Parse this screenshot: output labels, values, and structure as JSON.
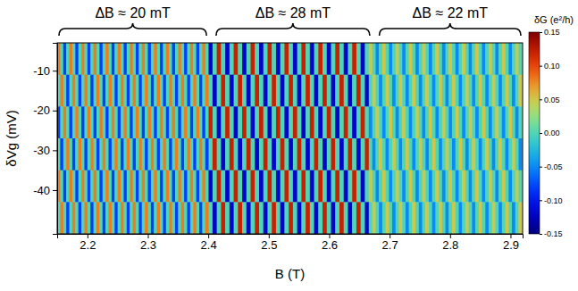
{
  "chart_data": {
    "type": "heatmap",
    "xlabel": "B (T)",
    "ylabel": "δVg (mV)",
    "xlim": [
      2.15,
      2.92
    ],
    "ylim": [
      -51,
      -3
    ],
    "xticks": [
      2.2,
      2.3,
      2.4,
      2.5,
      2.6,
      2.7,
      2.8,
      2.9
    ],
    "yticks": [
      -10,
      -20,
      -30,
      -40
    ],
    "x": [
      2.1525,
      2.1575,
      2.1625,
      2.1675,
      2.1725,
      2.1775,
      2.1825,
      2.1875,
      2.1925,
      2.1975,
      2.2025,
      2.2075,
      2.2125,
      2.2175,
      2.2225,
      2.2275,
      2.2325,
      2.2375,
      2.2425,
      2.2475,
      2.2525,
      2.2575,
      2.2625,
      2.2675,
      2.2725,
      2.2775,
      2.2825,
      2.2875,
      2.2925,
      2.2975,
      2.3025,
      2.3075,
      2.3125,
      2.3175,
      2.3225,
      2.3275,
      2.3325,
      2.3375,
      2.3425,
      2.3475,
      2.3525,
      2.3575,
      2.3625,
      2.3675,
      2.3725,
      2.3775,
      2.3825,
      2.3875,
      2.3925,
      2.3975,
      2.4035,
      2.4105,
      2.4175,
      2.4245,
      2.4315,
      2.4385,
      2.4455,
      2.4525,
      2.4595,
      2.4665,
      2.4735,
      2.4805,
      2.4875,
      2.4945,
      2.5015,
      2.5085,
      2.5155,
      2.5225,
      2.5295,
      2.5365,
      2.5435,
      2.5505,
      2.5575,
      2.5645,
      2.5715,
      2.5785,
      2.5855,
      2.5925,
      2.5995,
      2.6065,
      2.6135,
      2.6205,
      2.6275,
      2.6345,
      2.6415,
      2.6485,
      2.6555,
      2.6625,
      2.6685,
      2.674,
      2.6795,
      2.685,
      2.6905,
      2.696,
      2.7015,
      2.707,
      2.7125,
      2.718,
      2.7235,
      2.729,
      2.7345,
      2.74,
      2.7455,
      2.751,
      2.7565,
      2.762,
      2.7675,
      2.773,
      2.7785,
      2.784,
      2.7895,
      2.795,
      2.8005,
      2.806,
      2.8115,
      2.817,
      2.8225,
      2.828,
      2.8335,
      2.839,
      2.8445,
      2.85,
      2.8555,
      2.861,
      2.8665,
      2.872,
      2.8775,
      2.883,
      2.8885,
      2.894,
      2.8995,
      2.905,
      2.9105,
      2.916
    ],
    "y": [
      -7,
      -15,
      -23,
      -31,
      -39,
      -47
    ],
    "values": [
      [
        0.08,
        0,
        -0.08,
        0,
        0.08,
        0,
        -0.08,
        0,
        0.08,
        0,
        -0.08,
        0,
        0.08,
        0,
        -0.08,
        0,
        0.08,
        0,
        -0.08,
        0,
        0.08,
        0,
        -0.08,
        0,
        0.08,
        0,
        -0.08,
        0,
        0.08,
        0,
        -0.08,
        0,
        0.08,
        0,
        -0.08,
        0,
        0.08,
        0,
        -0.08,
        0,
        0.08,
        0,
        -0.08,
        0,
        0.08,
        0,
        -0.08,
        0,
        0.08,
        0,
        -0.12,
        0,
        0.12,
        0,
        -0.12,
        0,
        0.12,
        0,
        -0.12,
        0,
        0.12,
        0,
        -0.12,
        0,
        0.12,
        0,
        -0.12,
        0,
        0.12,
        0,
        -0.12,
        0,
        0.12,
        0,
        -0.12,
        0,
        0.12,
        0,
        -0.12,
        0,
        0.12,
        0,
        -0.12,
        0,
        0.12,
        0,
        -0.12,
        0,
        0.05,
        0,
        -0.05,
        0,
        0.05,
        0,
        -0.05,
        0,
        0.05,
        0,
        -0.05,
        0,
        0.05,
        0,
        -0.05,
        0,
        0.05,
        0,
        -0.05,
        0,
        0.05,
        0,
        -0.05,
        0,
        0.05,
        0,
        -0.05,
        0,
        0.05,
        0,
        -0.05,
        0,
        0.05,
        0,
        -0.05,
        0,
        0.05,
        0,
        -0.05,
        0,
        0.05,
        0,
        -0.05,
        0,
        0.05,
        0
      ],
      [
        0,
        0.08,
        0,
        -0.08,
        0,
        0.08,
        0,
        -0.08,
        0,
        0.08,
        0,
        -0.08,
        0,
        0.08,
        0,
        -0.08,
        0,
        0.08,
        0,
        -0.08,
        0,
        0.08,
        0,
        -0.08,
        0,
        0.08,
        0,
        -0.08,
        0,
        0.08,
        0,
        -0.08,
        0,
        0.08,
        0,
        -0.08,
        0,
        0.08,
        0,
        -0.08,
        0,
        0.08,
        0,
        -0.08,
        0,
        0.08,
        0,
        -0.08,
        0,
        0.08,
        0,
        -0.12,
        0,
        0.12,
        0,
        -0.12,
        0,
        0.12,
        0,
        -0.12,
        0,
        0.12,
        0,
        -0.12,
        0,
        0.12,
        0,
        -0.12,
        0,
        0.12,
        0,
        -0.12,
        0,
        0.12,
        0,
        -0.12,
        0,
        0.12,
        0,
        -0.12,
        0,
        0.12,
        0,
        -0.12,
        0,
        0.12,
        0,
        -0.12,
        0,
        0.05,
        0,
        -0.05,
        0,
        0.05,
        0,
        -0.05,
        0,
        0.05,
        0,
        -0.05,
        0,
        0.05,
        0,
        -0.05,
        0,
        0.05,
        0,
        -0.05,
        0,
        0.05,
        0,
        -0.05,
        0,
        0.05,
        0,
        -0.05,
        0,
        0.05,
        0,
        -0.05,
        0,
        0.05,
        0,
        -0.05,
        0,
        0.05,
        0,
        -0.05,
        0,
        0.05,
        0,
        -0.05,
        0,
        0.05
      ],
      [
        -0.08,
        0,
        0.08,
        0,
        -0.08,
        0,
        0.08,
        0,
        -0.08,
        0,
        0.08,
        0,
        -0.08,
        0,
        0.08,
        0,
        -0.08,
        0,
        0.08,
        0,
        -0.08,
        0,
        0.08,
        0,
        -0.08,
        0,
        0.08,
        0,
        -0.08,
        0,
        0.08,
        0,
        -0.08,
        0,
        0.08,
        0,
        -0.08,
        0,
        0.08,
        0,
        -0.08,
        0,
        0.08,
        0,
        -0.08,
        0,
        0.08,
        0,
        -0.08,
        0,
        0.12,
        0,
        -0.12,
        0,
        0.12,
        0,
        -0.12,
        0,
        0.12,
        0,
        -0.12,
        0,
        0.12,
        0,
        -0.12,
        0,
        0.12,
        0,
        -0.12,
        0,
        0.12,
        0,
        -0.12,
        0,
        0.12,
        0,
        -0.12,
        0,
        0.12,
        0,
        -0.12,
        0,
        0.12,
        0,
        -0.12,
        0,
        0.12,
        0,
        -0.05,
        0,
        0.05,
        0,
        -0.05,
        0,
        0.05,
        0,
        -0.05,
        0,
        0.05,
        0,
        -0.05,
        0,
        0.05,
        0,
        -0.05,
        0,
        0.05,
        0,
        -0.05,
        0,
        0.05,
        0,
        -0.05,
        0,
        0.05,
        0,
        -0.05,
        0,
        0.05,
        0,
        -0.05,
        0,
        0.05,
        0,
        -0.05,
        0,
        0.05,
        0,
        -0.05,
        0,
        0.05,
        0,
        -0.05,
        0
      ],
      [
        0,
        -0.08,
        0,
        0.08,
        0,
        -0.08,
        0,
        0.08,
        0,
        -0.08,
        0,
        0.08,
        0,
        -0.08,
        0,
        0.08,
        0,
        -0.08,
        0,
        0.08,
        0,
        -0.08,
        0,
        0.08,
        0,
        -0.08,
        0,
        0.08,
        0,
        -0.08,
        0,
        0.08,
        0,
        -0.08,
        0,
        0.08,
        0,
        -0.08,
        0,
        0.08,
        0,
        -0.08,
        0,
        0.08,
        0,
        -0.08,
        0,
        0.08,
        0,
        -0.08,
        0,
        0.12,
        0,
        -0.12,
        0,
        0.12,
        0,
        -0.12,
        0,
        0.12,
        0,
        -0.12,
        0,
        0.12,
        0,
        -0.12,
        0,
        0.12,
        0,
        -0.12,
        0,
        0.12,
        0,
        -0.12,
        0,
        0.12,
        0,
        -0.12,
        0,
        0.12,
        0,
        -0.12,
        0,
        0.12,
        0,
        -0.12,
        0,
        0.12,
        0,
        -0.05,
        0,
        0.05,
        0,
        -0.05,
        0,
        0.05,
        0,
        -0.05,
        0,
        0.05,
        0,
        -0.05,
        0,
        0.05,
        0,
        -0.05,
        0,
        0.05,
        0,
        -0.05,
        0,
        0.05,
        0,
        -0.05,
        0,
        0.05,
        0,
        -0.05,
        0,
        0.05,
        0,
        -0.05,
        0,
        0.05,
        0,
        -0.05,
        0,
        0.05,
        0,
        -0.05,
        0,
        0.05,
        0,
        -0.05
      ],
      [
        0.08,
        0,
        -0.08,
        0,
        0.08,
        0,
        -0.08,
        0,
        0.08,
        0,
        -0.08,
        0,
        0.08,
        0,
        -0.08,
        0,
        0.08,
        0,
        -0.08,
        0,
        0.08,
        0,
        -0.08,
        0,
        0.08,
        0,
        -0.08,
        0,
        0.08,
        0,
        -0.08,
        0,
        0.08,
        0,
        -0.08,
        0,
        0.08,
        0,
        -0.08,
        0,
        0.08,
        0,
        -0.08,
        0,
        0.08,
        0,
        -0.08,
        0,
        0.08,
        0,
        -0.12,
        0,
        0.12,
        0,
        -0.12,
        0,
        0.12,
        0,
        -0.12,
        0,
        0.12,
        0,
        -0.12,
        0,
        0.12,
        0,
        -0.12,
        0,
        0.12,
        0,
        -0.12,
        0,
        0.12,
        0,
        -0.12,
        0,
        0.12,
        0,
        -0.12,
        0,
        0.12,
        0,
        -0.12,
        0,
        0.12,
        0,
        -0.12,
        0,
        0.05,
        0,
        -0.05,
        0,
        0.05,
        0,
        -0.05,
        0,
        0.05,
        0,
        -0.05,
        0,
        0.05,
        0,
        -0.05,
        0,
        0.05,
        0,
        -0.05,
        0,
        0.05,
        0,
        -0.05,
        0,
        0.05,
        0,
        -0.05,
        0,
        0.05,
        0,
        -0.05,
        0,
        0.05,
        0,
        -0.05,
        0,
        0.05,
        0,
        -0.05,
        0,
        0.05,
        0,
        -0.05,
        0,
        0.05,
        0
      ],
      [
        0,
        0.08,
        0,
        -0.08,
        0,
        0.08,
        0,
        -0.08,
        0,
        0.08,
        0,
        -0.08,
        0,
        0.08,
        0,
        -0.08,
        0,
        0.08,
        0,
        -0.08,
        0,
        0.08,
        0,
        -0.08,
        0,
        0.08,
        0,
        -0.08,
        0,
        0.08,
        0,
        -0.08,
        0,
        0.08,
        0,
        -0.08,
        0,
        0.08,
        0,
        -0.08,
        0,
        0.08,
        0,
        -0.08,
        0,
        0.08,
        0,
        -0.08,
        0,
        0.08,
        0,
        -0.12,
        0,
        0.12,
        0,
        -0.12,
        0,
        0.12,
        0,
        -0.12,
        0,
        0.12,
        0,
        -0.12,
        0,
        0.12,
        0,
        -0.12,
        0,
        0.12,
        0,
        -0.12,
        0,
        0.12,
        0,
        -0.12,
        0,
        0.12,
        0,
        -0.12,
        0,
        0.12,
        0,
        -0.12,
        0,
        0.12,
        0,
        -0.12,
        0,
        0.05,
        0,
        -0.05,
        0,
        0.05,
        0,
        -0.05,
        0,
        0.05,
        0,
        -0.05,
        0,
        0.05,
        0,
        -0.05,
        0,
        0.05,
        0,
        -0.05,
        0,
        0.05,
        0,
        -0.05,
        0,
        0.05,
        0,
        -0.05,
        0,
        0.05,
        0,
        -0.05,
        0,
        0.05,
        0,
        -0.05,
        0,
        0.05,
        0,
        -0.05,
        0,
        0.05,
        0,
        -0.05,
        0,
        0.05
      ]
    ],
    "colorbar": {
      "label": "δG (e²/h)",
      "range": [
        -0.15,
        0.15
      ],
      "ticks": [
        0.15,
        {
          "value": 0.1,
          "label": "0.10"
        },
        0.05,
        {
          "value": 0,
          "label": "0.00"
        },
        -0.05,
        {
          "value": -0.1,
          "label": "-0.10"
        },
        -0.15
      ]
    },
    "annotations": [
      {
        "text": "ΔB ≈ 20 mT",
        "x": [
          2.15,
          2.4
        ]
      },
      {
        "text": "ΔB ≈ 28 mT",
        "x": [
          2.41,
          2.67
        ]
      },
      {
        "text": "ΔB ≈ 22 mT",
        "x": [
          2.68,
          2.92
        ]
      }
    ]
  }
}
